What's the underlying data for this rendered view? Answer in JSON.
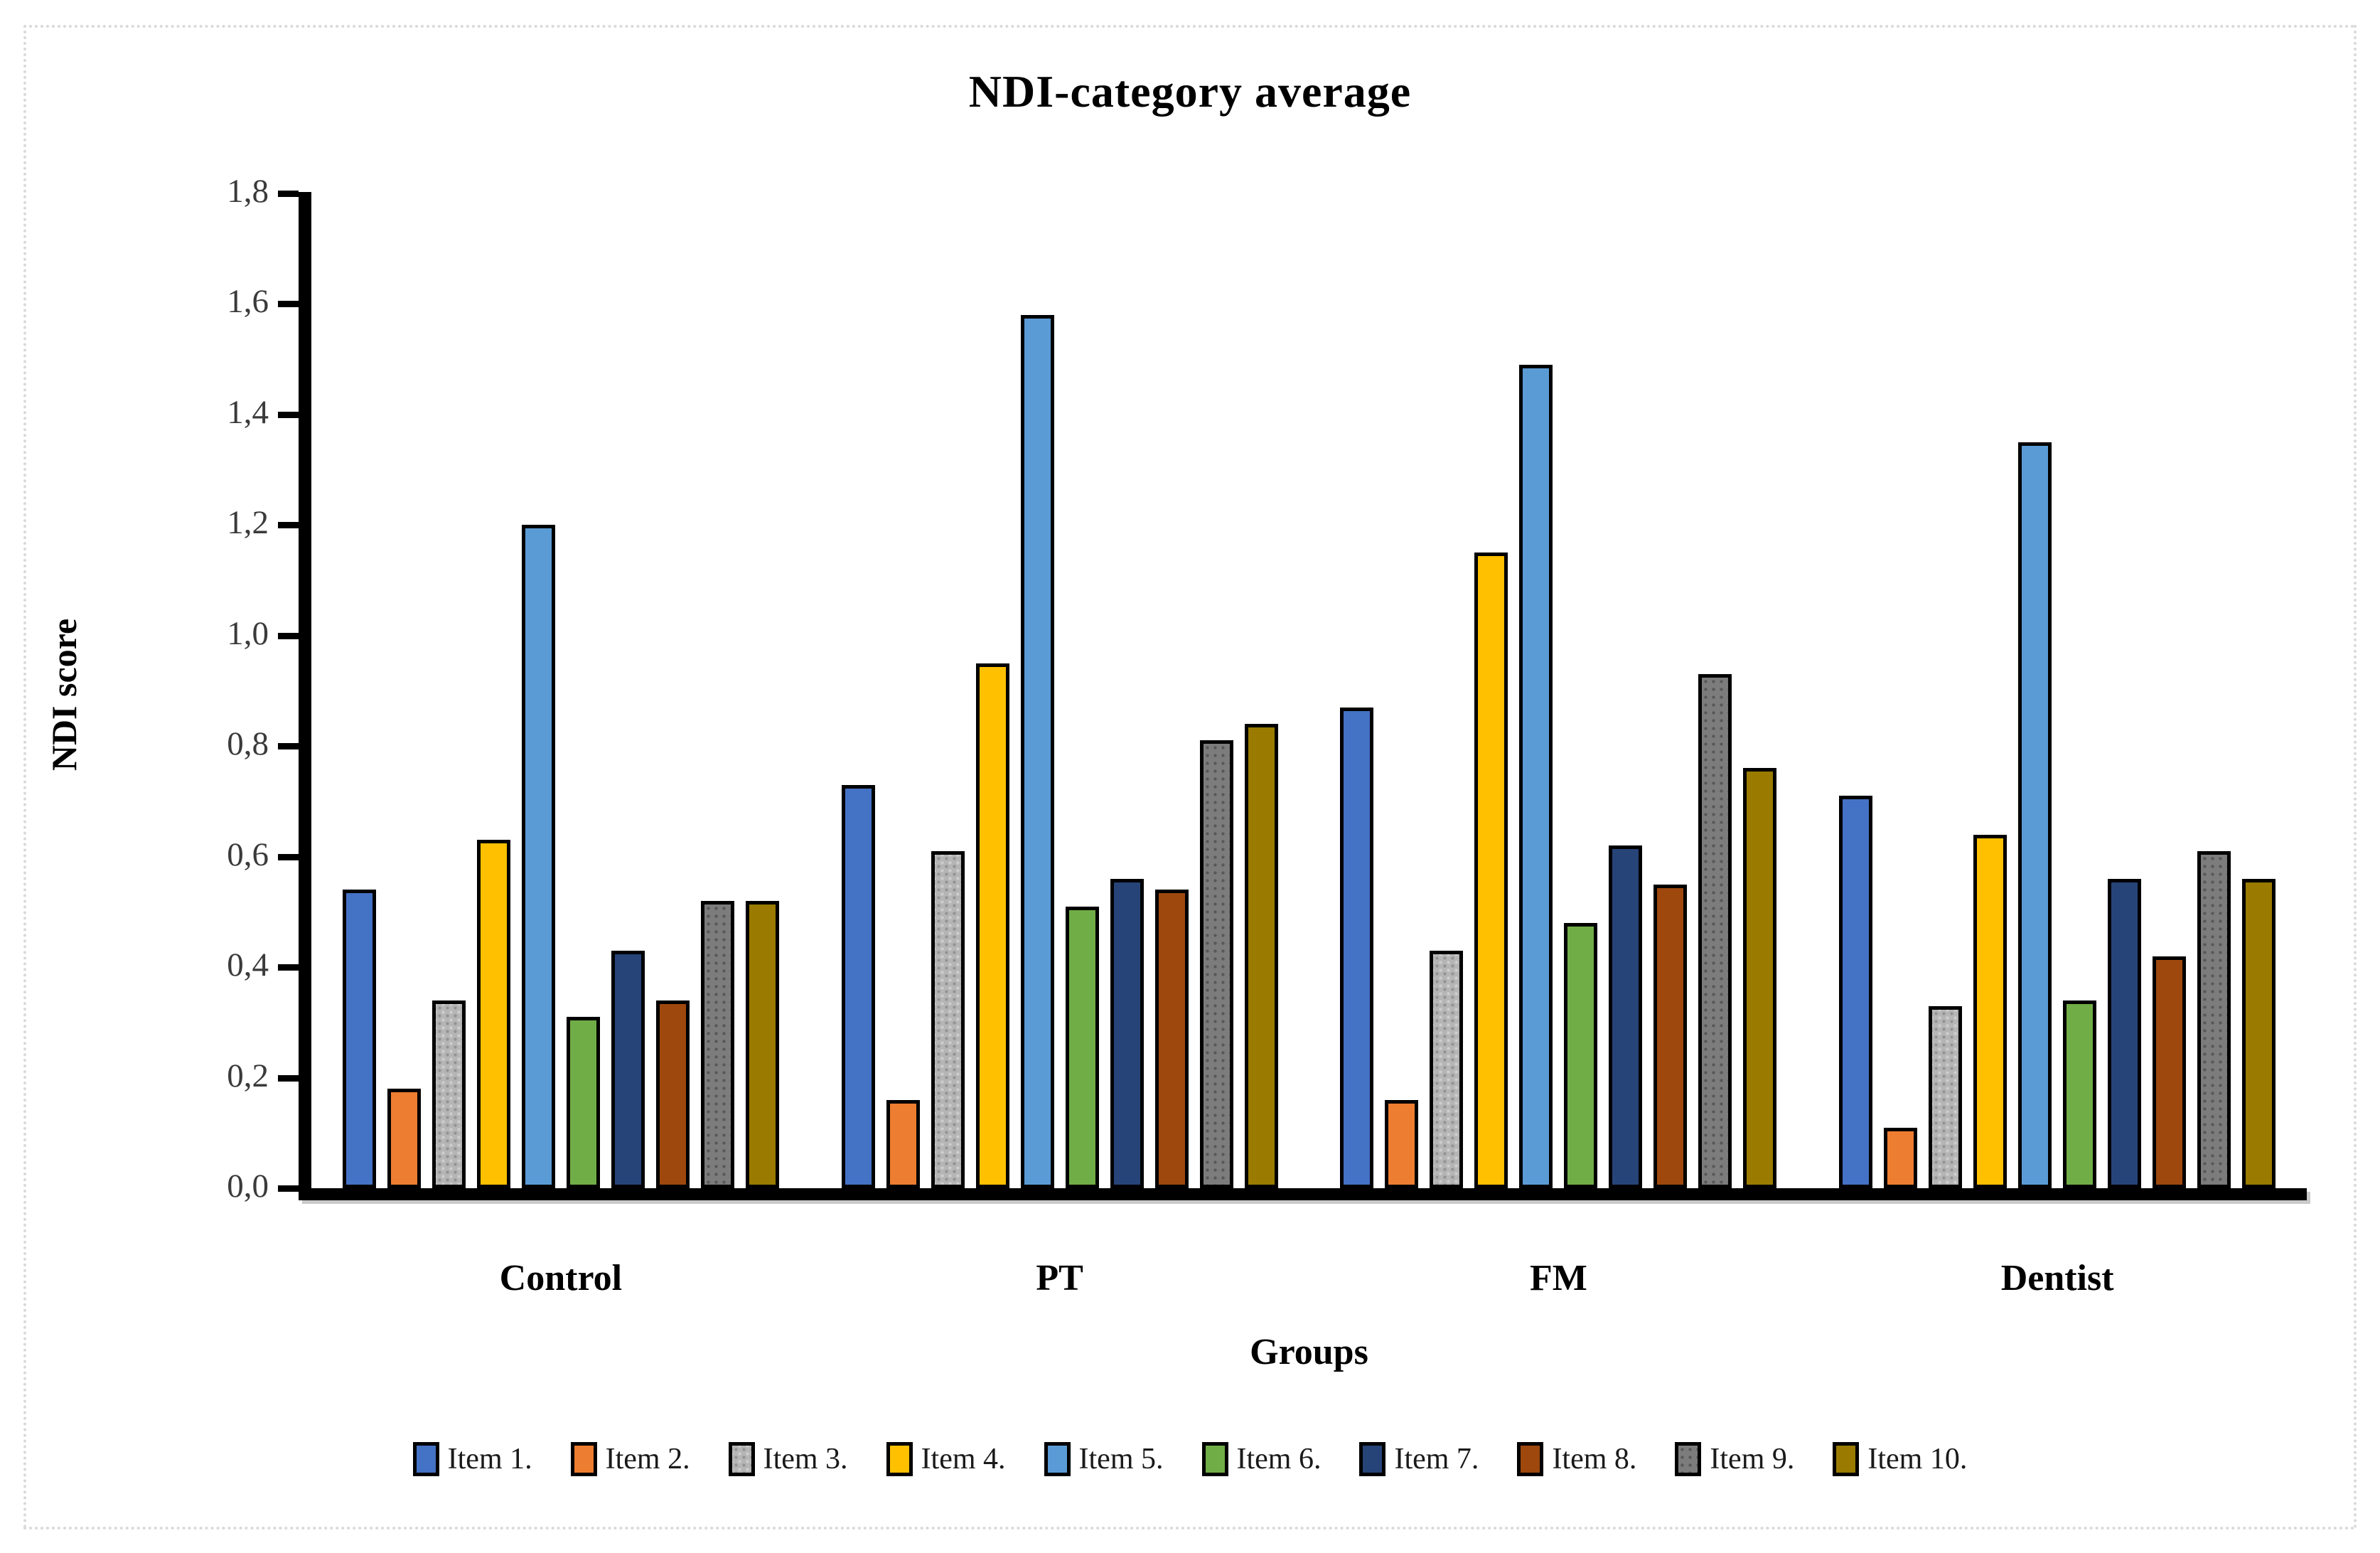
{
  "title": "NDI-category average",
  "y_axis": {
    "title": "NDI score",
    "tick_labels": [
      "0,0",
      "0,2",
      "0,4",
      "0,6",
      "0,8",
      "1,0",
      "1,2",
      "1,4",
      "1,6",
      "1,8"
    ],
    "min": 0,
    "max": 1.8,
    "step": 0.2
  },
  "x_axis": {
    "title": "Groups",
    "categories": [
      "Control",
      "PT",
      "FM",
      "Dentist"
    ]
  },
  "chart_data": {
    "type": "bar",
    "title": "NDI-category average",
    "xlabel": "Groups",
    "ylabel": "NDI score",
    "ylim": [
      0,
      1.8
    ],
    "grid": false,
    "legend_position": "bottom",
    "categories": [
      "Control",
      "PT",
      "FM",
      "Dentist"
    ],
    "series": [
      {
        "name": "Item 1.",
        "color": "#4472C4",
        "pattern": "none",
        "values": [
          0.54,
          0.73,
          0.87,
          0.71
        ]
      },
      {
        "name": "Item 2.",
        "color": "#ED7D31",
        "pattern": "none",
        "values": [
          0.18,
          0.16,
          0.16,
          0.11
        ]
      },
      {
        "name": "Item 3.",
        "color": "#B5B5B5",
        "pattern": "dots-light",
        "values": [
          0.34,
          0.61,
          0.43,
          0.33
        ]
      },
      {
        "name": "Item 4.",
        "color": "#FFC000",
        "pattern": "none",
        "values": [
          0.63,
          0.95,
          1.15,
          0.64
        ]
      },
      {
        "name": "Item 5.",
        "color": "#5B9BD5",
        "pattern": "none",
        "values": [
          1.2,
          1.58,
          1.49,
          1.35
        ]
      },
      {
        "name": "Item 6.",
        "color": "#70AD47",
        "pattern": "none",
        "values": [
          0.31,
          0.51,
          0.48,
          0.34
        ]
      },
      {
        "name": "Item 7.",
        "color": "#264478",
        "pattern": "none",
        "values": [
          0.43,
          0.56,
          0.62,
          0.56
        ]
      },
      {
        "name": "Item 8.",
        "color": "#9E480E",
        "pattern": "none",
        "values": [
          0.34,
          0.54,
          0.55,
          0.42
        ]
      },
      {
        "name": "Item 9.",
        "color": "#7C7C7C",
        "pattern": "dots-dark",
        "values": [
          0.52,
          0.81,
          0.93,
          0.61
        ]
      },
      {
        "name": "Item 10.",
        "color": "#9A7B00",
        "pattern": "none",
        "values": [
          0.52,
          0.84,
          0.76,
          0.56
        ]
      }
    ]
  }
}
